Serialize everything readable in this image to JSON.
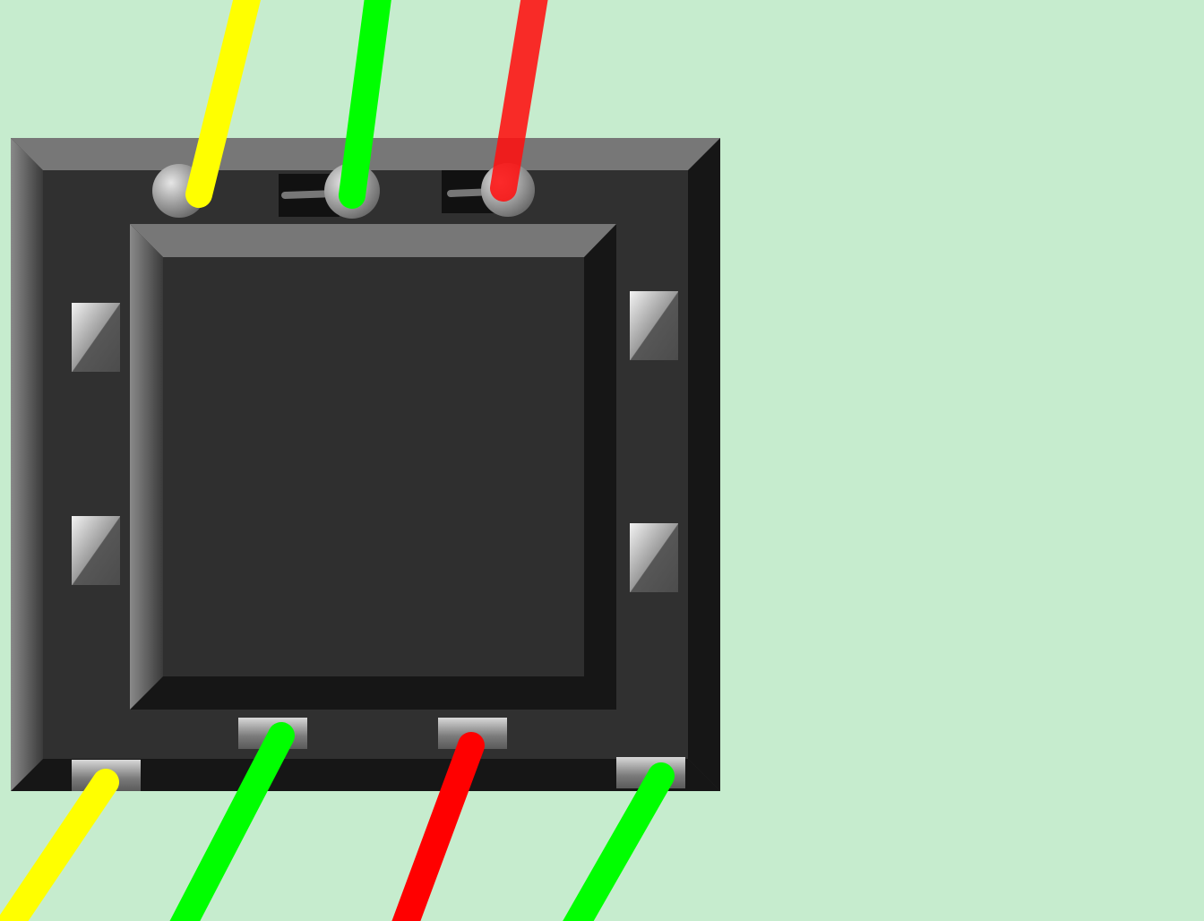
{
  "scene": {
    "background_color": "#c6ecce",
    "device": {
      "kind": "electronic-component-housing",
      "body_color": "#303030",
      "shadow_color": "#161616",
      "bevel_color": "#777777",
      "inner_panel_color": "#2f2f2f"
    },
    "mounting_pads_count": 4,
    "terminals": {
      "top": [
        "round-terminal",
        "round-terminal",
        "round-terminal"
      ],
      "bottom": [
        "square-terminal",
        "square-terminal",
        "square-terminal",
        "square-terminal"
      ]
    },
    "switches": [
      {
        "name": "switch-1",
        "state": "off"
      },
      {
        "name": "switch-2",
        "state": "off"
      }
    ],
    "wires": [
      {
        "name": "wire-top-1",
        "color": "#ffff00"
      },
      {
        "name": "wire-top-2",
        "color": "#00ff00"
      },
      {
        "name": "wire-top-3",
        "color": "#ff1111"
      },
      {
        "name": "wire-bottom-1",
        "color": "#ffff00"
      },
      {
        "name": "wire-bottom-2",
        "color": "#00ff00"
      },
      {
        "name": "wire-bottom-3",
        "color": "#ff0000"
      },
      {
        "name": "wire-bottom-4",
        "color": "#00ff00"
      }
    ]
  }
}
